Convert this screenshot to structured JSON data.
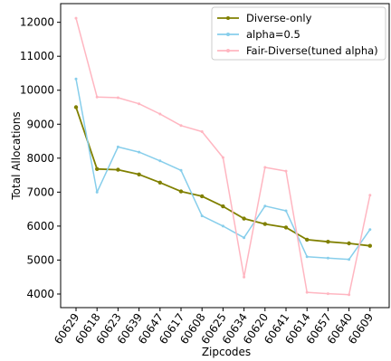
{
  "chart_data": {
    "type": "line",
    "xlabel": "Zipcodes",
    "ylabel": "Total Allocations",
    "categories": [
      "60629",
      "60618",
      "60623",
      "60639",
      "60647",
      "60617",
      "60608",
      "60625",
      "60634",
      "60620",
      "60641",
      "60614",
      "60657",
      "60640",
      "60609"
    ],
    "ylim": [
      3600,
      12550
    ],
    "yticks": [
      4000,
      5000,
      6000,
      7000,
      8000,
      9000,
      10000,
      11000,
      12000
    ],
    "grid": false,
    "legend_position": "top-right",
    "series": [
      {
        "name": "Diverse-only",
        "color": "#808000",
        "values": [
          9500,
          7680,
          7660,
          7520,
          7280,
          7020,
          6880,
          6580,
          6220,
          6060,
          5960,
          5600,
          5540,
          5490,
          5420
        ]
      },
      {
        "name": "alpha=0.5",
        "color": "#87ceeb",
        "values": [
          10330,
          7000,
          8330,
          8180,
          7920,
          7640,
          6300,
          6000,
          5660,
          6590,
          6450,
          5100,
          5060,
          5020,
          5900
        ]
      },
      {
        "name": "Fair-Diverse(tuned alpha)",
        "color": "#ffb6c1",
        "values": [
          12120,
          9800,
          9780,
          9600,
          9300,
          8960,
          8780,
          8020,
          4500,
          7730,
          7620,
          4050,
          4010,
          3980,
          6910
        ]
      }
    ]
  }
}
